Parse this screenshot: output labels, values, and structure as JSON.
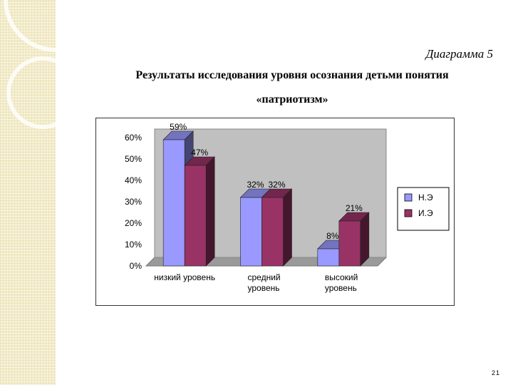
{
  "page": {
    "caption": "Диаграмма 5",
    "title_line1": "Результаты исследования уровня осознания детьми понятия",
    "title_line2": "«патриотизм»",
    "page_number": "21"
  },
  "colors": {
    "series1": "#9999ff",
    "series2": "#993366",
    "wall": "#c0c0c0",
    "strip": "#f3ecc9"
  },
  "chart_data": {
    "type": "bar",
    "categories": [
      [
        "низкий уровень"
      ],
      [
        "средний",
        "уровень"
      ],
      [
        "высокий",
        "уровень"
      ]
    ],
    "series": [
      {
        "name": "Н.Э",
        "values": [
          59,
          32,
          8
        ],
        "labels": [
          "59%",
          "32%",
          "8%"
        ]
      },
      {
        "name": "И.Э",
        "values": [
          47,
          32,
          21
        ],
        "labels": [
          "47%",
          "32%",
          "21%"
        ]
      }
    ],
    "yticks": [
      "0%",
      "10%",
      "20%",
      "30%",
      "40%",
      "50%",
      "60%"
    ],
    "ylim": [
      0,
      60
    ],
    "legend_position": "right",
    "grid": false,
    "three_d": true
  }
}
